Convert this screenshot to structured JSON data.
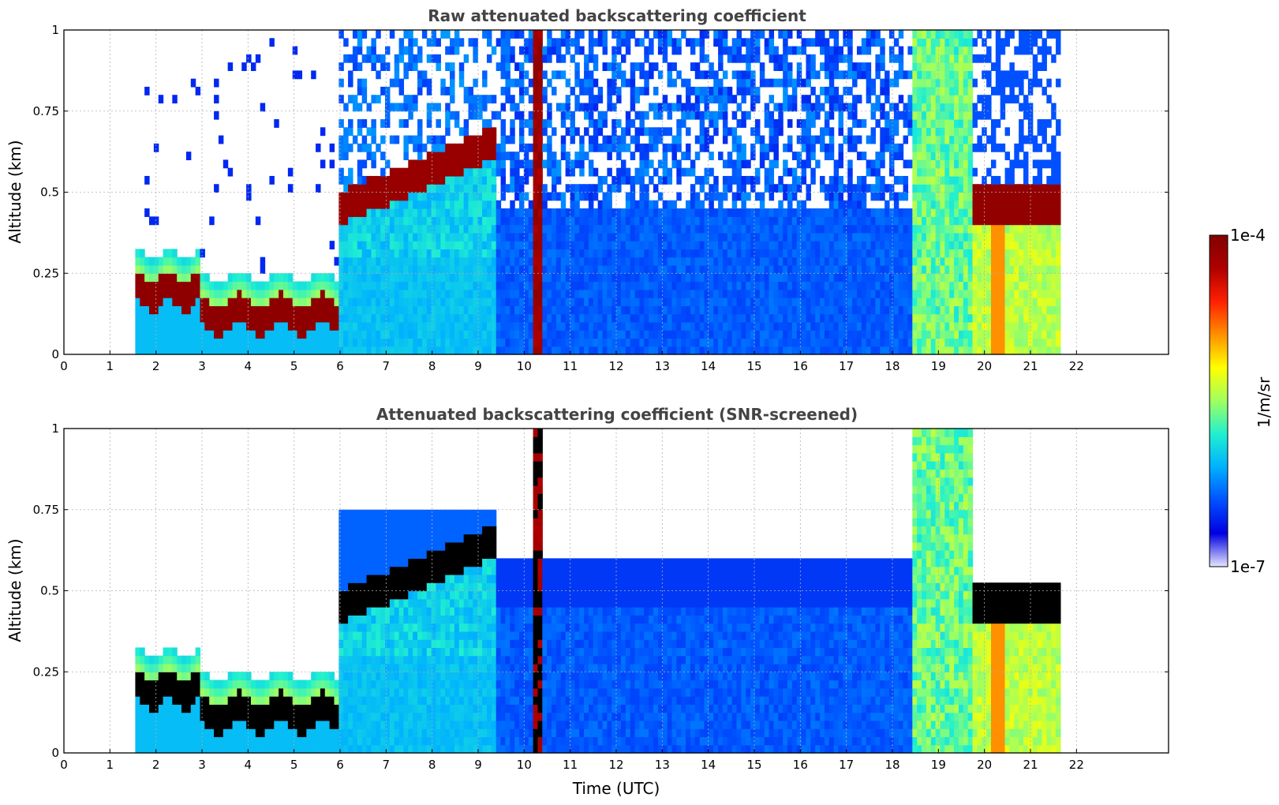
{
  "chart_data": [
    {
      "type": "heatmap",
      "title": "Raw attenuated backscattering coefficient",
      "xlabel": "",
      "ylabel": "Altitude (km)",
      "xlim": [
        0,
        24
      ],
      "ylim": [
        0,
        1
      ],
      "x_ticks": [
        "0",
        "1",
        "2",
        "3",
        "4",
        "5",
        "6",
        "7",
        "8",
        "9",
        "10",
        "11",
        "12",
        "13",
        "14",
        "15",
        "16",
        "17",
        "18",
        "19",
        "20",
        "21",
        "22"
      ],
      "y_ticks": [
        "0",
        "0.25",
        "0.5",
        "0.75",
        "1"
      ],
      "grid": true,
      "data_time_range": [
        1.55,
        21.65
      ],
      "features": [
        {
          "name": "boundary layer",
          "t_start": 1.55,
          "t_end": 6.0,
          "alt_bottom": 0.1,
          "alt_top": 0.3
        },
        {
          "name": "rising aerosol layer",
          "t_start": 6.0,
          "t_end": 9.3,
          "alt_bottom": 0.3,
          "alt_top": 0.65
        },
        {
          "name": "precipitation column",
          "t_start": 10.2,
          "t_end": 10.4,
          "alt_bottom": 0.0,
          "alt_top": 1.0
        },
        {
          "name": "cloud layer",
          "t_start": 19.7,
          "t_end": 21.6,
          "alt_bottom": 0.4,
          "alt_top": 0.55
        }
      ]
    },
    {
      "type": "heatmap",
      "title": "Attenuated backscattering coefficient (SNR-screened)",
      "xlabel": "Time (UTC)",
      "ylabel": "Altitude (km)",
      "xlim": [
        0,
        24
      ],
      "ylim": [
        0,
        1
      ],
      "x_ticks": [
        "0",
        "1",
        "2",
        "3",
        "4",
        "5",
        "6",
        "7",
        "8",
        "9",
        "10",
        "11",
        "12",
        "13",
        "14",
        "15",
        "16",
        "17",
        "18",
        "19",
        "20",
        "21",
        "22"
      ],
      "y_ticks": [
        "0",
        "0.25",
        "0.5",
        "0.75",
        "1"
      ],
      "grid": true,
      "data_time_range": [
        1.55,
        21.65
      ]
    }
  ],
  "colorbar": {
    "label": "1/m/sr",
    "min_label": "1e-7",
    "max_label": "1e-4",
    "scale": "log",
    "colormap": "jet",
    "colors": [
      "#e6e6ff",
      "#0000e0",
      "#0050ff",
      "#00b0ff",
      "#20f0d0",
      "#a0ff60",
      "#ffff00",
      "#ff9000",
      "#ff2000",
      "#b00000",
      "#800000"
    ]
  }
}
